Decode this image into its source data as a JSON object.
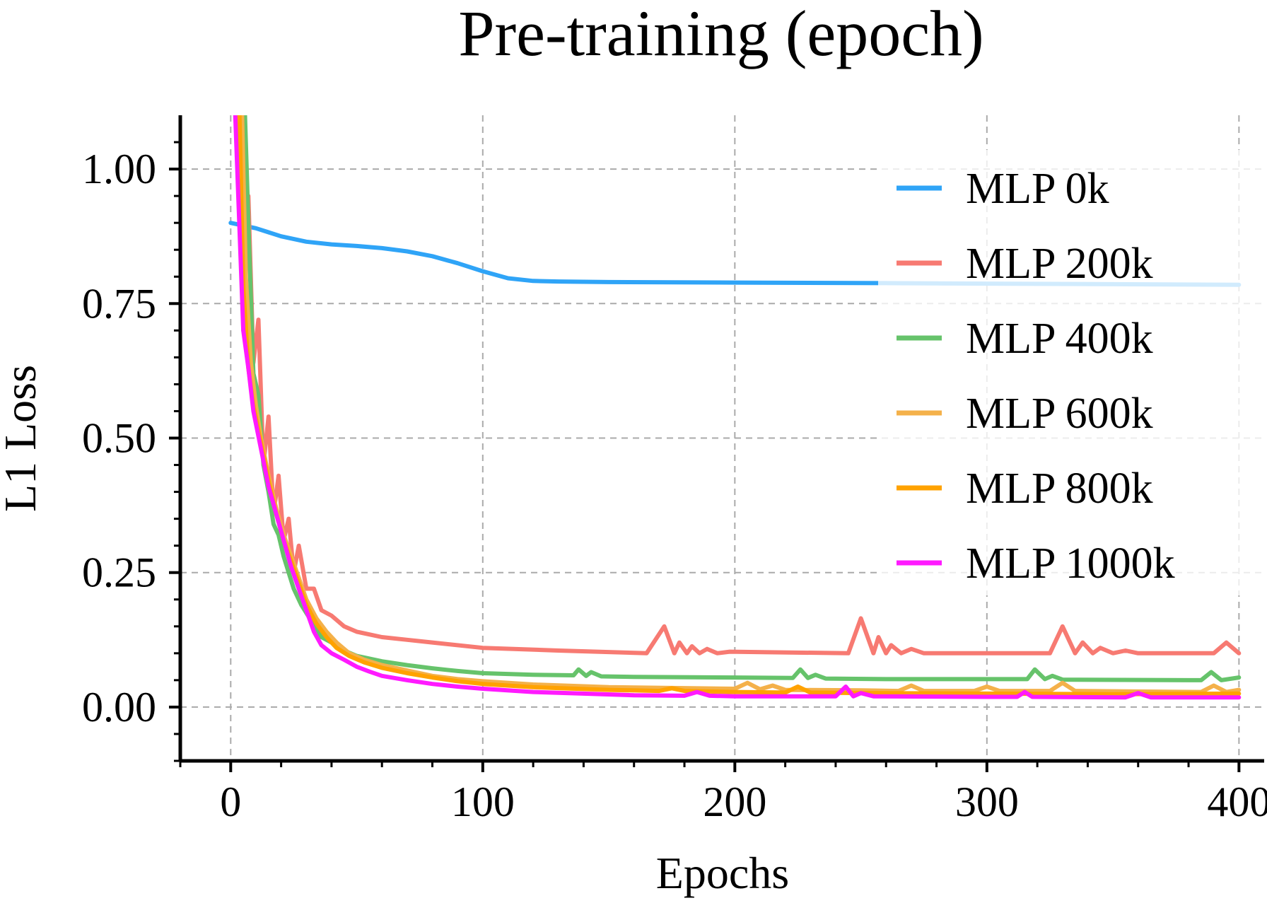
{
  "chart_data": {
    "type": "line",
    "title": "Pre-training (epoch)",
    "xlabel": "Epochs",
    "ylabel": "L1 Loss",
    "xlim": [
      -20,
      410
    ],
    "ylim": [
      -0.1,
      1.1
    ],
    "xticks": [
      0,
      100,
      200,
      300,
      400
    ],
    "xtick_labels": [
      "0",
      "100",
      "200",
      "300",
      "400"
    ],
    "yticks": [
      0.0,
      0.25,
      0.5,
      0.75,
      1.0
    ],
    "ytick_labels": [
      "0.00",
      "0.25",
      "0.50",
      "0.75",
      "1.00"
    ],
    "grid": true,
    "legend_position": "upper right",
    "series": [
      {
        "name": "MLP 0k",
        "color": "#2fa4f7",
        "points": [
          [
            0,
            0.9
          ],
          [
            10,
            0.89
          ],
          [
            20,
            0.875
          ],
          [
            30,
            0.865
          ],
          [
            40,
            0.86
          ],
          [
            50,
            0.857
          ],
          [
            60,
            0.853
          ],
          [
            70,
            0.847
          ],
          [
            80,
            0.838
          ],
          [
            90,
            0.825
          ],
          [
            100,
            0.81
          ],
          [
            110,
            0.797
          ],
          [
            120,
            0.792
          ],
          [
            130,
            0.791
          ],
          [
            150,
            0.79
          ],
          [
            200,
            0.789
          ],
          [
            260,
            0.788
          ],
          [
            300,
            0.787
          ],
          [
            350,
            0.786
          ],
          [
            400,
            0.785
          ]
        ]
      },
      {
        "name": "MLP 200k",
        "color": "#f77a72",
        "points": [
          [
            3,
            1.2
          ],
          [
            5,
            0.7
          ],
          [
            7,
            0.95
          ],
          [
            9,
            0.64
          ],
          [
            11,
            0.72
          ],
          [
            13,
            0.45
          ],
          [
            15,
            0.54
          ],
          [
            17,
            0.36
          ],
          [
            19,
            0.43
          ],
          [
            21,
            0.31
          ],
          [
            23,
            0.35
          ],
          [
            25,
            0.25
          ],
          [
            27,
            0.3
          ],
          [
            30,
            0.22
          ],
          [
            33,
            0.22
          ],
          [
            36,
            0.18
          ],
          [
            40,
            0.17
          ],
          [
            45,
            0.15
          ],
          [
            50,
            0.14
          ],
          [
            60,
            0.13
          ],
          [
            70,
            0.125
          ],
          [
            80,
            0.12
          ],
          [
            100,
            0.11
          ],
          [
            130,
            0.105
          ],
          [
            165,
            0.1
          ],
          [
            172,
            0.15
          ],
          [
            176,
            0.1
          ],
          [
            178,
            0.12
          ],
          [
            181,
            0.1
          ],
          [
            183,
            0.113
          ],
          [
            186,
            0.1
          ],
          [
            189,
            0.108
          ],
          [
            193,
            0.1
          ],
          [
            198,
            0.103
          ],
          [
            245,
            0.1
          ],
          [
            250,
            0.165
          ],
          [
            255,
            0.1
          ],
          [
            257,
            0.13
          ],
          [
            260,
            0.1
          ],
          [
            262,
            0.115
          ],
          [
            266,
            0.1
          ],
          [
            270,
            0.108
          ],
          [
            275,
            0.1
          ],
          [
            325,
            0.1
          ],
          [
            330,
            0.15
          ],
          [
            335,
            0.1
          ],
          [
            338,
            0.12
          ],
          [
            342,
            0.1
          ],
          [
            345,
            0.11
          ],
          [
            350,
            0.1
          ],
          [
            355,
            0.105
          ],
          [
            360,
            0.1
          ],
          [
            390,
            0.1
          ],
          [
            395,
            0.12
          ],
          [
            400,
            0.1
          ]
        ]
      },
      {
        "name": "MLP 400k",
        "color": "#66c36b",
        "points": [
          [
            5,
            1.2
          ],
          [
            7,
            0.9
          ],
          [
            9,
            0.62
          ],
          [
            11,
            0.58
          ],
          [
            13,
            0.45
          ],
          [
            15,
            0.4
          ],
          [
            17,
            0.34
          ],
          [
            19,
            0.32
          ],
          [
            21,
            0.28
          ],
          [
            23,
            0.25
          ],
          [
            25,
            0.22
          ],
          [
            28,
            0.19
          ],
          [
            32,
            0.16
          ],
          [
            36,
            0.13
          ],
          [
            40,
            0.12
          ],
          [
            45,
            0.105
          ],
          [
            50,
            0.095
          ],
          [
            60,
            0.085
          ],
          [
            70,
            0.078
          ],
          [
            80,
            0.072
          ],
          [
            90,
            0.067
          ],
          [
            100,
            0.063
          ],
          [
            120,
            0.06
          ],
          [
            136,
            0.059
          ],
          [
            138,
            0.07
          ],
          [
            141,
            0.058
          ],
          [
            143,
            0.065
          ],
          [
            147,
            0.057
          ],
          [
            160,
            0.056
          ],
          [
            200,
            0.055
          ],
          [
            223,
            0.054
          ],
          [
            226,
            0.07
          ],
          [
            229,
            0.054
          ],
          [
            232,
            0.06
          ],
          [
            236,
            0.053
          ],
          [
            260,
            0.052
          ],
          [
            300,
            0.052
          ],
          [
            316,
            0.052
          ],
          [
            319,
            0.07
          ],
          [
            323,
            0.052
          ],
          [
            326,
            0.058
          ],
          [
            330,
            0.051
          ],
          [
            380,
            0.05
          ],
          [
            385,
            0.05
          ],
          [
            389,
            0.065
          ],
          [
            393,
            0.05
          ],
          [
            400,
            0.055
          ]
        ]
      },
      {
        "name": "MLP 600k",
        "color": "#f4b14a",
        "points": [
          [
            4,
            1.2
          ],
          [
            6,
            0.8
          ],
          [
            8,
            0.64
          ],
          [
            10,
            0.56
          ],
          [
            12,
            0.5
          ],
          [
            15,
            0.43
          ],
          [
            18,
            0.37
          ],
          [
            21,
            0.32
          ],
          [
            24,
            0.28
          ],
          [
            27,
            0.24
          ],
          [
            30,
            0.2
          ],
          [
            34,
            0.165
          ],
          [
            38,
            0.14
          ],
          [
            42,
            0.12
          ],
          [
            47,
            0.1
          ],
          [
            53,
            0.088
          ],
          [
            60,
            0.078
          ],
          [
            70,
            0.068
          ],
          [
            80,
            0.058
          ],
          [
            90,
            0.052
          ],
          [
            100,
            0.048
          ],
          [
            120,
            0.042
          ],
          [
            150,
            0.037
          ],
          [
            200,
            0.034
          ],
          [
            205,
            0.045
          ],
          [
            210,
            0.033
          ],
          [
            215,
            0.04
          ],
          [
            220,
            0.032
          ],
          [
            250,
            0.031
          ],
          [
            265,
            0.03
          ],
          [
            270,
            0.04
          ],
          [
            275,
            0.03
          ],
          [
            295,
            0.03
          ],
          [
            300,
            0.038
          ],
          [
            305,
            0.03
          ],
          [
            325,
            0.03
          ],
          [
            330,
            0.045
          ],
          [
            335,
            0.03
          ],
          [
            385,
            0.028
          ],
          [
            390,
            0.04
          ],
          [
            395,
            0.028
          ],
          [
            400,
            0.032
          ]
        ]
      },
      {
        "name": "MLP 800k",
        "color": "#ffa200",
        "points": [
          [
            3,
            1.2
          ],
          [
            5,
            0.78
          ],
          [
            7,
            0.63
          ],
          [
            9,
            0.56
          ],
          [
            12,
            0.49
          ],
          [
            15,
            0.42
          ],
          [
            18,
            0.36
          ],
          [
            21,
            0.31
          ],
          [
            24,
            0.27
          ],
          [
            27,
            0.23
          ],
          [
            30,
            0.19
          ],
          [
            34,
            0.155
          ],
          [
            38,
            0.13
          ],
          [
            42,
            0.11
          ],
          [
            47,
            0.095
          ],
          [
            53,
            0.083
          ],
          [
            60,
            0.073
          ],
          [
            70,
            0.063
          ],
          [
            80,
            0.055
          ],
          [
            90,
            0.048
          ],
          [
            100,
            0.043
          ],
          [
            120,
            0.037
          ],
          [
            150,
            0.032
          ],
          [
            170,
            0.03
          ],
          [
            175,
            0.035
          ],
          [
            180,
            0.03
          ],
          [
            200,
            0.028
          ],
          [
            220,
            0.027
          ],
          [
            225,
            0.038
          ],
          [
            230,
            0.027
          ],
          [
            250,
            0.026
          ],
          [
            300,
            0.025
          ],
          [
            350,
            0.024
          ],
          [
            400,
            0.025
          ]
        ]
      },
      {
        "name": "MLP 1000k",
        "color": "#ff1aff",
        "points": [
          [
            1,
            1.2
          ],
          [
            3,
            0.95
          ],
          [
            5,
            0.7
          ],
          [
            7,
            0.63
          ],
          [
            9,
            0.55
          ],
          [
            12,
            0.48
          ],
          [
            15,
            0.41
          ],
          [
            18,
            0.36
          ],
          [
            21,
            0.31
          ],
          [
            24,
            0.26
          ],
          [
            27,
            0.22
          ],
          [
            30,
            0.18
          ],
          [
            33,
            0.14
          ],
          [
            36,
            0.115
          ],
          [
            40,
            0.1
          ],
          [
            45,
            0.088
          ],
          [
            50,
            0.075
          ],
          [
            55,
            0.066
          ],
          [
            60,
            0.058
          ],
          [
            70,
            0.05
          ],
          [
            80,
            0.043
          ],
          [
            90,
            0.038
          ],
          [
            100,
            0.034
          ],
          [
            120,
            0.028
          ],
          [
            140,
            0.025
          ],
          [
            160,
            0.022
          ],
          [
            180,
            0.021
          ],
          [
            185,
            0.028
          ],
          [
            190,
            0.021
          ],
          [
            200,
            0.02
          ],
          [
            240,
            0.02
          ],
          [
            244,
            0.038
          ],
          [
            247,
            0.02
          ],
          [
            250,
            0.026
          ],
          [
            255,
            0.02
          ],
          [
            300,
            0.019
          ],
          [
            312,
            0.019
          ],
          [
            315,
            0.028
          ],
          [
            318,
            0.019
          ],
          [
            355,
            0.018
          ],
          [
            360,
            0.026
          ],
          [
            365,
            0.018
          ],
          [
            400,
            0.018
          ]
        ]
      }
    ]
  }
}
